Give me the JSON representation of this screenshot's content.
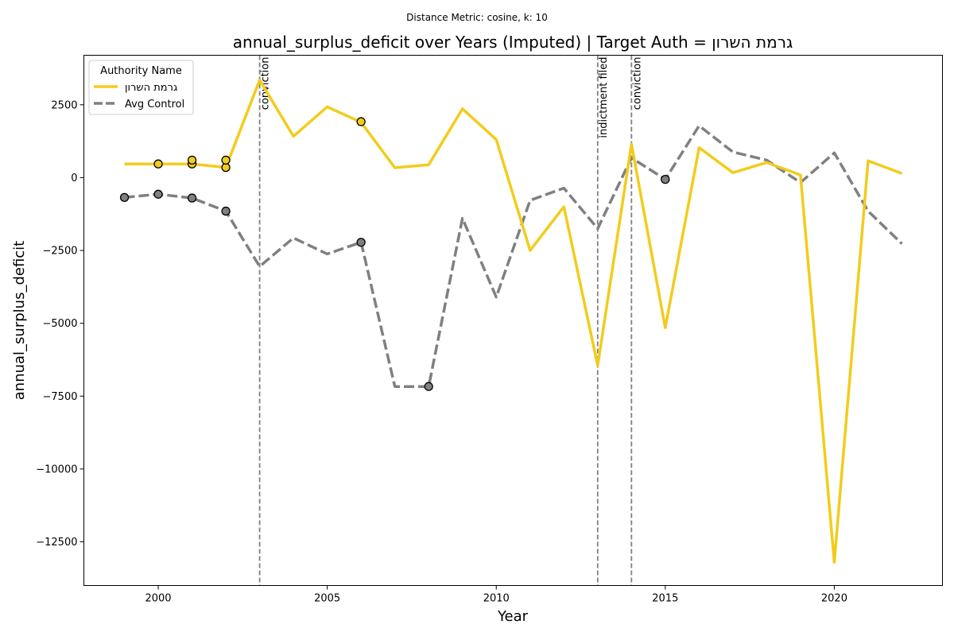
{
  "chart_data": {
    "type": "line",
    "suptitle": "Distance Metric: cosine, k: 10",
    "title": "annual_surplus_deficit over Years (Imputed) | Target Auth = גרמת השרון",
    "xlabel": "Year",
    "ylabel": "annual_surplus_deficit",
    "xlim": [
      1997.8,
      2023.2
    ],
    "ylim": [
      -14000,
      4200
    ],
    "xticks": [
      2000,
      2005,
      2010,
      2015,
      2020
    ],
    "yticks": [
      -12500,
      -10000,
      -7500,
      -5000,
      -2500,
      0,
      2500
    ],
    "grid": false,
    "legend": {
      "title": "Authority Name",
      "placement": "top-left",
      "entries": [
        "גרמת השרון",
        "Avg Control"
      ]
    },
    "events": [
      {
        "x": 2003,
        "label": "conviction"
      },
      {
        "x": 2013,
        "label": "indictment filed"
      },
      {
        "x": 2014,
        "label": "conviction"
      }
    ],
    "series": [
      {
        "name": "גרמת השרון",
        "color": "#f2cc1d",
        "style": "solid",
        "x": [
          1999,
          2000,
          2001,
          2002,
          2003,
          2004,
          2005,
          2006,
          2007,
          2008,
          2009,
          2010,
          2011,
          2012,
          2013,
          2014,
          2015,
          2016,
          2017,
          2018,
          2019,
          2020,
          2021,
          2022
        ],
        "y": [
          470,
          470,
          470,
          350,
          3350,
          1420,
          2430,
          1900,
          340,
          440,
          2360,
          1310,
          -2500,
          -1000,
          -6450,
          1150,
          -5150,
          1030,
          170,
          520,
          90,
          -13200,
          580,
          140
        ],
        "markers": [
          {
            "x": 2000,
            "y": 470
          },
          {
            "x": 2001,
            "y": 470
          },
          {
            "x": 2001,
            "y": 600
          },
          {
            "x": 2002,
            "y": 350
          },
          {
            "x": 2002,
            "y": 600
          },
          {
            "x": 2006,
            "y": 1920
          }
        ]
      },
      {
        "name": "Avg Control",
        "color": "#808080",
        "style": "dashed",
        "x": [
          1999,
          2000,
          2001,
          2002,
          2003,
          2004,
          2005,
          2006,
          2007,
          2008,
          2009,
          2010,
          2011,
          2012,
          2013,
          2014,
          2015,
          2016,
          2017,
          2018,
          2019,
          2020,
          2021,
          2022
        ],
        "y": [
          -680,
          -570,
          -700,
          -1150,
          -3050,
          -2070,
          -2620,
          -2220,
          -7170,
          -7170,
          -1400,
          -4100,
          -780,
          -360,
          -1750,
          680,
          -60,
          1780,
          880,
          600,
          -170,
          850,
          -1150,
          -2270
        ],
        "markers": [
          {
            "x": 1999,
            "y": -680
          },
          {
            "x": 2000,
            "y": -570
          },
          {
            "x": 2001,
            "y": -700
          },
          {
            "x": 2002,
            "y": -1150
          },
          {
            "x": 2006,
            "y": -2220
          },
          {
            "x": 2008,
            "y": -7170
          },
          {
            "x": 2015,
            "y": -60
          }
        ]
      }
    ]
  }
}
